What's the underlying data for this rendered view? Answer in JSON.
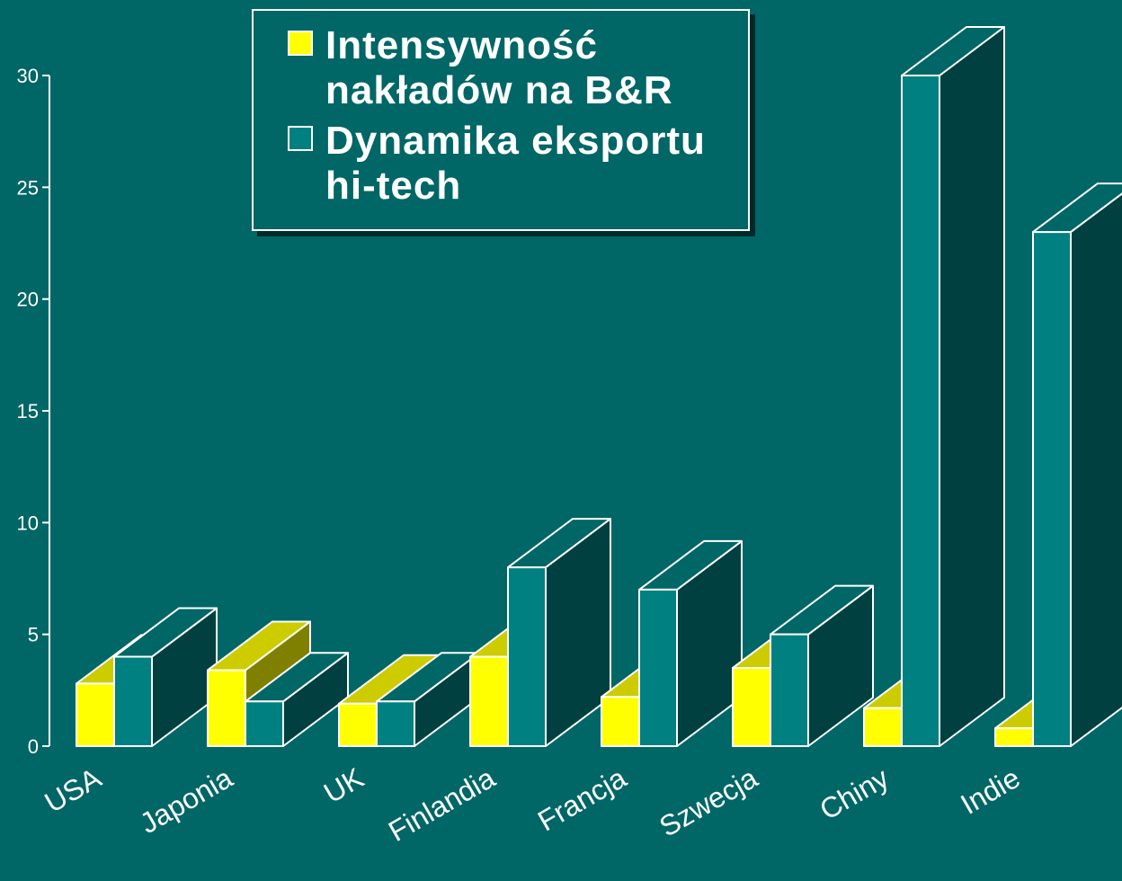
{
  "chart_data": {
    "type": "bar3d",
    "categories": [
      "USA",
      "Japonia",
      "UK",
      "Finlandia",
      "Francja",
      "Szwecja",
      "Chiny",
      "Indie"
    ],
    "series": [
      {
        "name": "Intensywność nakładów na B&R",
        "color": "#ffff00",
        "values": [
          2.8,
          3.4,
          1.9,
          4.0,
          2.2,
          3.5,
          1.7,
          0.8
        ]
      },
      {
        "name": "Dynamika eksportu hi-tech",
        "color": "#008080",
        "values": [
          4,
          2,
          2,
          8,
          7,
          5,
          30,
          23
        ]
      }
    ],
    "ylim": [
      0,
      30
    ],
    "yticks": [
      0,
      5,
      10,
      15,
      20,
      25,
      30
    ]
  }
}
